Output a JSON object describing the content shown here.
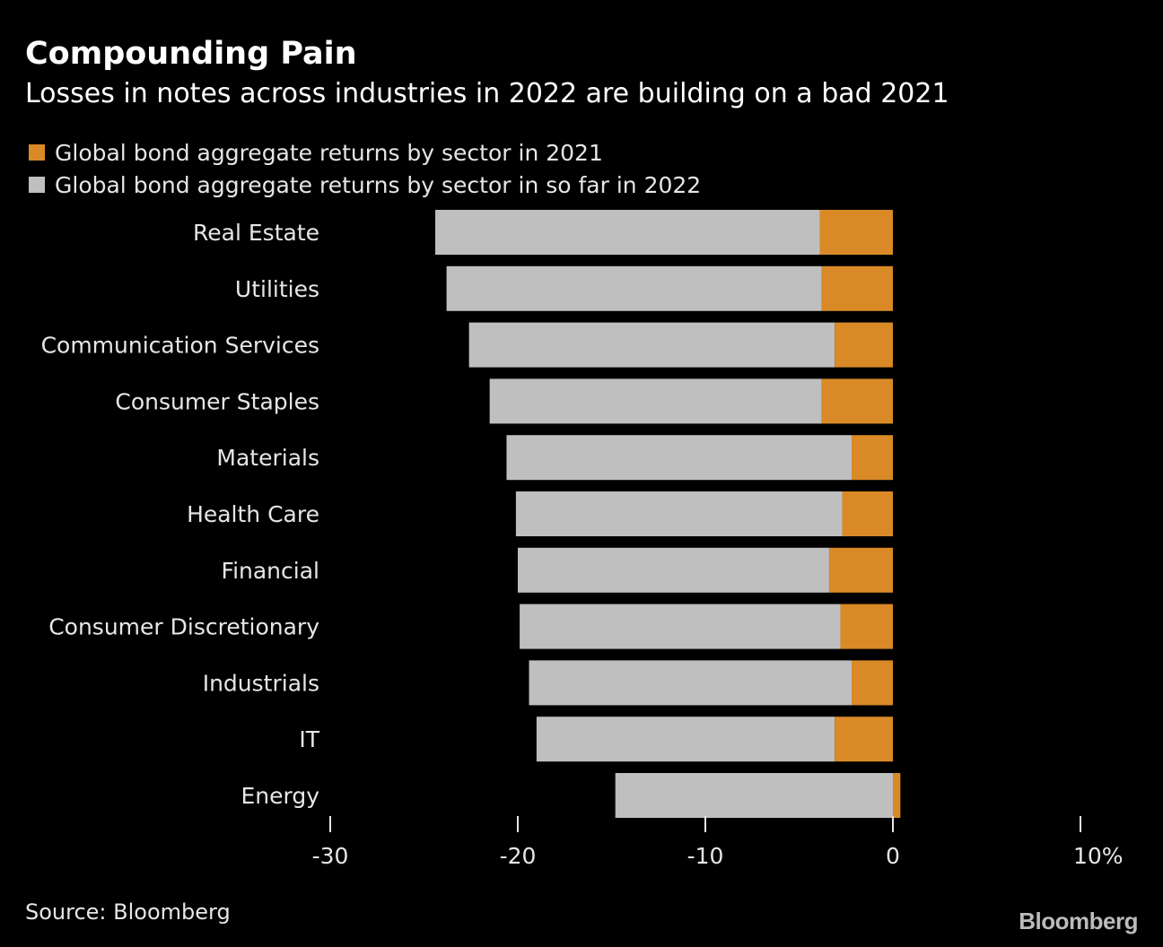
{
  "title": "Compounding Pain",
  "subtitle": "Losses in notes across industries in 2022 are building on a bad 2021",
  "legend": [
    {
      "label": "Global bond aggregate returns by sector in 2021",
      "color": "#d98a26"
    },
    {
      "label": "Global bond aggregate returns by sector in so far in 2022",
      "color": "#bfbfbf"
    }
  ],
  "source": "Source: Bloomberg",
  "brand": "Bloomberg",
  "chart_data": {
    "type": "bar",
    "orientation": "horizontal",
    "stacked": true,
    "categories": [
      "Real Estate",
      "Utilities",
      "Communication Services",
      "Consumer Staples",
      "Materials",
      "Health Care",
      "Financial",
      "Consumer Discretionary",
      "Industrials",
      "IT",
      "Energy"
    ],
    "series": [
      {
        "name": "Global bond aggregate returns by sector in 2021",
        "color": "#d98a26",
        "values": [
          -3.9,
          -3.8,
          -3.1,
          -3.8,
          -2.2,
          -2.7,
          -3.4,
          -2.8,
          -2.2,
          -3.1,
          0.4
        ]
      },
      {
        "name": "Global bond aggregate returns by sector in so far in 2022",
        "color": "#bfbfbf",
        "values": [
          -20.5,
          -20.0,
          -19.5,
          -17.7,
          -18.4,
          -17.4,
          -16.6,
          -17.1,
          -17.2,
          -15.9,
          -14.8
        ]
      }
    ],
    "xlim": [
      -30,
      10
    ],
    "xticks": [
      "-30",
      "-20",
      "-10",
      "0",
      "10%"
    ],
    "xtick_values": [
      -30,
      -20,
      -10,
      0,
      10
    ],
    "grid": false
  }
}
